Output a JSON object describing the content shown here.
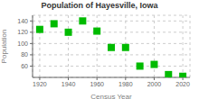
{
  "chart_data": {
    "type": "scatter",
    "title": "Population of Hayesville, Iowa",
    "xlabel": "Census Year",
    "ylabel": "Population",
    "x": [
      1920,
      1930,
      1940,
      1950,
      1960,
      1970,
      1980,
      1990,
      2000,
      2010,
      2020
    ],
    "values": [
      125,
      135,
      120,
      140,
      122,
      93,
      93,
      60,
      63,
      45,
      42
    ],
    "color": "#00bb00",
    "marker": "square",
    "xlim": [
      1915,
      2025
    ],
    "ylim": [
      40,
      150
    ],
    "xticks": [
      1920,
      1940,
      1960,
      1980,
      2000,
      2020
    ],
    "yticks": [
      60,
      80,
      100,
      120,
      140
    ],
    "grid": true
  }
}
